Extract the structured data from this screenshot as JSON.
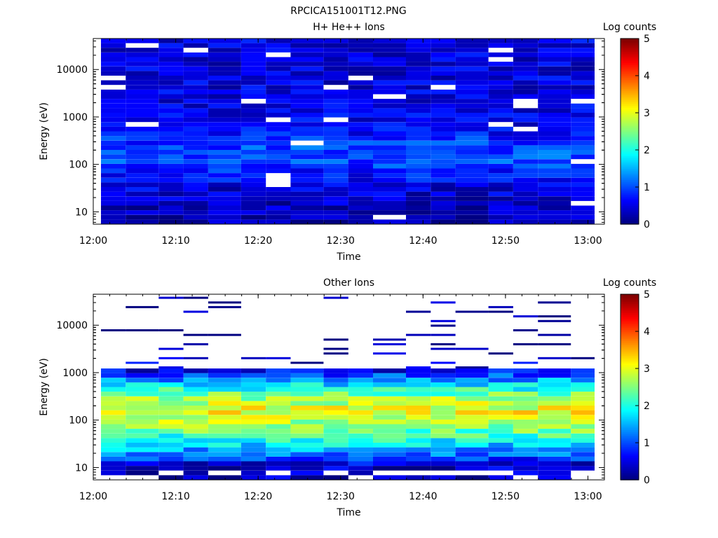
{
  "figure_title": "RPCICA151001T12.PNG",
  "chart_data": [
    {
      "type": "heatmap",
      "title": "H+ He++ Ions",
      "xlabel": "Time",
      "ylabel": "Energy (eV)",
      "y_scale": "log",
      "ylim": [
        5.5,
        45000
      ],
      "x_start": "12:00",
      "x_end": "13:02",
      "x_ticks": [
        "12:00",
        "12:10",
        "12:20",
        "12:30",
        "12:40",
        "12:50",
        "13:00"
      ],
      "y_ticks": [
        "10",
        "100",
        "1000",
        "10000"
      ],
      "colorbar": {
        "label": "Log counts",
        "range": [
          0,
          5
        ],
        "ticks": [
          "0",
          "1",
          "2",
          "3",
          "4",
          "5"
        ]
      },
      "time_bins": [
        "12:00",
        "12:03",
        "12:07",
        "12:10",
        "12:13",
        "12:17",
        "12:20",
        "12:23",
        "12:27",
        "12:30",
        "12:33",
        "12:37",
        "12:40",
        "12:43",
        "12:47",
        "12:50",
        "12:53",
        "12:57"
      ],
      "energy_profile": [
        {
          "energy_eV": 8,
          "log_counts": 0.2
        },
        {
          "energy_eV": 15,
          "log_counts": 0.35
        },
        {
          "energy_eV": 30,
          "log_counts": 0.45
        },
        {
          "energy_eV": 60,
          "log_counts": 0.7
        },
        {
          "energy_eV": 120,
          "log_counts": 1.0
        },
        {
          "energy_eV": 250,
          "log_counts": 0.95
        },
        {
          "energy_eV": 600,
          "log_counts": 0.55
        },
        {
          "energy_eV": 2000,
          "log_counts": 0.5
        },
        {
          "energy_eV": 10000,
          "log_counts": 0.45
        },
        {
          "energy_eV": 40000,
          "log_counts": 0.5
        }
      ]
    },
    {
      "type": "heatmap",
      "title": "Other Ions",
      "xlabel": "Time",
      "ylabel": "Energy (eV)",
      "y_scale": "log",
      "ylim": [
        5.5,
        45000
      ],
      "x_start": "12:00",
      "x_end": "13:02",
      "x_ticks": [
        "12:00",
        "12:10",
        "12:20",
        "12:30",
        "12:40",
        "12:50",
        "13:00"
      ],
      "y_ticks": [
        "10",
        "100",
        "1000",
        "10000"
      ],
      "colorbar": {
        "label": "Log counts",
        "range": [
          0,
          5
        ],
        "ticks": [
          "0",
          "1",
          "2",
          "3",
          "4",
          "5"
        ]
      },
      "time_bins": [
        "12:00",
        "12:03",
        "12:07",
        "12:10",
        "12:13",
        "12:17",
        "12:20",
        "12:23",
        "12:27",
        "12:30",
        "12:33",
        "12:37",
        "12:40",
        "12:43",
        "12:47",
        "12:50",
        "12:53",
        "12:57"
      ],
      "energy_profile": [
        {
          "energy_eV": 10,
          "log_counts": 0.3
        },
        {
          "energy_eV": 25,
          "log_counts": 1.5
        },
        {
          "energy_eV": 60,
          "log_counts": 2.4
        },
        {
          "energy_eV": 150,
          "log_counts": 3.1
        },
        {
          "energy_eV": 300,
          "log_counts": 2.6
        },
        {
          "energy_eV": 600,
          "log_counts": 1.6
        },
        {
          "energy_eV": 1200,
          "log_counts": 0.4
        },
        {
          "energy_eV": 10000,
          "log_counts": 0.1
        }
      ]
    }
  ]
}
